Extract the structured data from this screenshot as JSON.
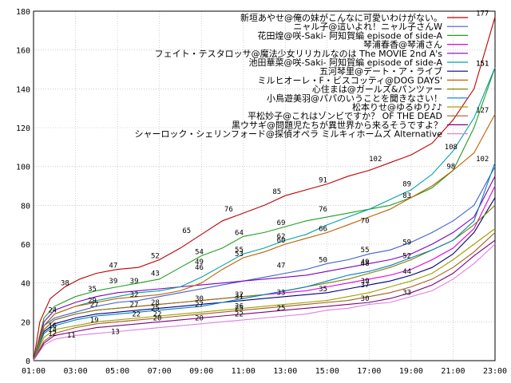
{
  "chart_data": {
    "type": "line",
    "title": "",
    "xlabel": "",
    "ylabel": "",
    "x_ticks": [
      "01:00",
      "03:00",
      "05:00",
      "07:00",
      "09:00",
      "11:00",
      "13:00",
      "15:00",
      "17:00",
      "19:00",
      "21:00",
      "23:00"
    ],
    "y_ticks": [
      0,
      20,
      40,
      60,
      80,
      100,
      120,
      140,
      160,
      180
    ],
    "xlim": [
      0,
      22
    ],
    "ylim": [
      0,
      180
    ],
    "grid": true,
    "legend_position": "top-right",
    "series": [
      {
        "name": "新垣あやせ@俺の妹がこんなに可愛いわけがない。",
        "color": "#c00000",
        "x": [
          0,
          0.3,
          0.8,
          1.5,
          2.2,
          3,
          4,
          5,
          6,
          7,
          8,
          9,
          10,
          11,
          12,
          13,
          14,
          15,
          16,
          17,
          18,
          19,
          20,
          21,
          22
        ],
        "y": [
          0,
          20,
          32,
          38,
          42,
          45,
          47,
          48,
          52,
          58,
          65,
          72,
          76,
          80,
          85,
          88,
          91,
          95,
          98,
          102,
          106,
          112,
          124,
          140,
          177
        ],
        "labels": [
          {
            "x": 1.5,
            "y": 38,
            "t": "38"
          },
          {
            "x": 3.8,
            "y": 47,
            "t": "47"
          },
          {
            "x": 5.8,
            "y": 52,
            "t": "52"
          },
          {
            "x": 7.3,
            "y": 65,
            "t": "65"
          },
          {
            "x": 9.3,
            "y": 76,
            "t": "76"
          },
          {
            "x": 11.6,
            "y": 85,
            "t": "85"
          },
          {
            "x": 13.8,
            "y": 91,
            "t": "91"
          },
          {
            "x": 16.3,
            "y": 102,
            "t": "102"
          },
          {
            "x": 21.4,
            "y": 177,
            "t": "177"
          }
        ]
      },
      {
        "name": "ニャル子@這いよれ！ニャル子さんW",
        "color": "#4060d0",
        "x": [
          0,
          0.5,
          1,
          2,
          3,
          4,
          5,
          6,
          7,
          8,
          9,
          10,
          11,
          12,
          13,
          14,
          15,
          16,
          17,
          18,
          19,
          20,
          21,
          22
        ],
        "y": [
          0,
          18,
          22,
          25,
          28,
          30,
          31,
          33,
          35,
          37,
          39,
          41,
          43,
          45,
          47,
          50,
          52,
          55,
          57,
          61,
          66,
          72,
          80,
          100
        ],
        "labels": []
      },
      {
        "name": "花田煌@咲-Saki- 阿知賀編 episode of side-A",
        "color": "#20a020",
        "x": [
          0,
          0.5,
          1,
          2,
          3,
          4,
          5,
          6,
          7,
          8,
          9,
          10,
          11,
          12,
          13,
          14,
          15,
          16,
          17,
          18,
          19,
          20,
          21,
          22
        ],
        "y": [
          0,
          22,
          28,
          33,
          36,
          38,
          40,
          42,
          48,
          54,
          58,
          64,
          66,
          69,
          72,
          74,
          76,
          78,
          80,
          84,
          89,
          98,
          120,
          151
        ],
        "labels": [
          {
            "x": 3.8,
            "y": 39,
            "t": "39"
          },
          {
            "x": 5.8,
            "y": 43,
            "t": "43"
          },
          {
            "x": 7.9,
            "y": 54,
            "t": "54"
          },
          {
            "x": 9.8,
            "y": 64,
            "t": "64"
          },
          {
            "x": 11.8,
            "y": 69,
            "t": "69"
          },
          {
            "x": 13.8,
            "y": 76,
            "t": "76"
          },
          {
            "x": 17.8,
            "y": 89,
            "t": "89"
          },
          {
            "x": 21.4,
            "y": 151,
            "t": "151"
          }
        ]
      },
      {
        "name": "琴浦春香@琴浦さん",
        "color": "#e000e0",
        "x": [
          0,
          0.5,
          1,
          2,
          3,
          4,
          5,
          6,
          7,
          8,
          9,
          10,
          11,
          12,
          13,
          14,
          15,
          16,
          17,
          18,
          19,
          20,
          21,
          22
        ],
        "y": [
          0,
          16,
          21,
          24,
          26,
          27,
          28,
          29,
          30,
          31,
          32,
          33,
          34,
          35,
          36,
          38,
          40,
          42,
          44,
          47,
          52,
          58,
          68,
          90
        ],
        "labels": []
      },
      {
        "name": "フェイト・テスタロッサ@魔法少女リリカルなのは The MOVIE 2nd A's",
        "color": "#8000c0",
        "x": [
          0,
          0.5,
          1,
          2,
          3,
          4,
          5,
          6,
          7,
          8,
          9,
          10,
          11,
          12,
          13,
          14,
          15,
          16,
          17,
          18,
          19,
          20,
          21,
          22
        ],
        "y": [
          0,
          20,
          26,
          30,
          33,
          35,
          36,
          37,
          38,
          39,
          40,
          41,
          42,
          43,
          44,
          46,
          48,
          50,
          52,
          55,
          60,
          66,
          74,
          95
        ],
        "labels": [
          {
            "x": 11.8,
            "y": 47,
            "t": "47"
          },
          {
            "x": 13.8,
            "y": 50,
            "t": "50"
          },
          {
            "x": 15.8,
            "y": 55,
            "t": "55"
          },
          {
            "x": 17.8,
            "y": 59,
            "t": "59"
          }
        ]
      },
      {
        "name": "池田華菜@咲-Saki- 阿知賀編 episode of side-A",
        "color": "#00a0a0",
        "x": [
          0,
          0.5,
          1,
          2,
          3,
          4,
          5,
          6,
          7,
          8,
          9,
          10,
          11,
          12,
          13,
          14,
          15,
          16,
          17,
          18,
          19,
          20,
          21,
          22
        ],
        "y": [
          0,
          18,
          24,
          28,
          31,
          33,
          35,
          36,
          38,
          43,
          49,
          55,
          58,
          62,
          65,
          70,
          74,
          78,
          83,
          88,
          96,
          108,
          125,
          151
        ],
        "labels": [
          {
            "x": 2.8,
            "y": 35,
            "t": "35"
          },
          {
            "x": 4.8,
            "y": 39,
            "t": "39"
          },
          {
            "x": 7.9,
            "y": 49,
            "t": "49"
          },
          {
            "x": 9.8,
            "y": 55,
            "t": "55"
          },
          {
            "x": 11.8,
            "y": 62,
            "t": "62"
          },
          {
            "x": 17.8,
            "y": 83,
            "t": "83"
          },
          {
            "x": 19.9,
            "y": 108,
            "t": "108"
          },
          {
            "x": 21.4,
            "y": 151,
            "t": "151"
          }
        ]
      },
      {
        "name": "五河琴里@デート・ア・ライブ",
        "color": "#000080",
        "x": [
          0,
          0.5,
          1,
          2,
          3,
          4,
          5,
          6,
          7,
          8,
          9,
          10,
          11,
          12,
          13,
          14,
          15,
          16,
          17,
          18,
          19,
          20,
          21,
          22
        ],
        "y": [
          0,
          15,
          19,
          22,
          24,
          25,
          26,
          27,
          28,
          29,
          30,
          31,
          32,
          33,
          34,
          35,
          37,
          39,
          41,
          44,
          48,
          55,
          66,
          84
        ],
        "labels": [
          {
            "x": 5.8,
            "y": 28,
            "t": "28"
          },
          {
            "x": 7.9,
            "y": 30,
            "t": "30"
          },
          {
            "x": 9.8,
            "y": 31,
            "t": "31"
          },
          {
            "x": 11.8,
            "y": 33,
            "t": "33"
          },
          {
            "x": 13.8,
            "y": 35,
            "t": "35"
          },
          {
            "x": 15.8,
            "y": 37,
            "t": "37"
          }
        ]
      },
      {
        "name": "ミルヒオーレ・F・ビスコッティ@DOG DAYS'",
        "color": "#c06000",
        "x": [
          0,
          0.5,
          1,
          2,
          3,
          4,
          5,
          6,
          7,
          8,
          9,
          10,
          11,
          12,
          13,
          14,
          15,
          16,
          17,
          18,
          19,
          20,
          21,
          22
        ],
        "y": [
          0,
          18,
          24,
          28,
          30,
          32,
          33,
          34,
          36,
          40,
          47,
          53,
          56,
          60,
          63,
          66,
          70,
          74,
          78,
          84,
          90,
          98,
          107,
          127
        ],
        "labels": [
          {
            "x": 2.8,
            "y": 29,
            "t": "29"
          },
          {
            "x": 4.8,
            "y": 32,
            "t": "32"
          },
          {
            "x": 7.9,
            "y": 46,
            "t": "46"
          },
          {
            "x": 9.8,
            "y": 53,
            "t": "53"
          },
          {
            "x": 11.8,
            "y": 60,
            "t": "60"
          },
          {
            "x": 13.8,
            "y": 66,
            "t": "66"
          },
          {
            "x": 15.8,
            "y": 70,
            "t": "70"
          },
          {
            "x": 19.9,
            "y": 98,
            "t": "98"
          },
          {
            "x": 21.4,
            "y": 127,
            "t": "127"
          }
        ]
      },
      {
        "name": "心住まは@ガールズ&パンツァー",
        "color": "#808000",
        "x": [
          0,
          0.5,
          1,
          2,
          3,
          4,
          5,
          6,
          7,
          8,
          9,
          10,
          11,
          12,
          13,
          14,
          15,
          16,
          17,
          18,
          19,
          20,
          21,
          22
        ],
        "y": [
          0,
          16,
          21,
          24,
          26,
          27,
          28,
          29,
          30,
          31,
          32,
          33,
          34,
          36,
          38,
          40,
          42,
          45,
          48,
          52,
          57,
          62,
          70,
          80
        ],
        "labels": [
          {
            "x": 0.9,
            "y": 24,
            "t": "24"
          },
          {
            "x": 2.9,
            "y": 27,
            "t": "27"
          },
          {
            "x": 4.8,
            "y": 27,
            "t": "27"
          },
          {
            "x": 15.8,
            "y": 48,
            "t": "48"
          },
          {
            "x": 17.8,
            "y": 52,
            "t": "52"
          }
        ]
      },
      {
        "name": "小鳥遊美羽@パパのいうことを聞きなさい！",
        "color": "#0080c0",
        "x": [
          0,
          0.5,
          1,
          2,
          3,
          4,
          5,
          6,
          7,
          8,
          9,
          10,
          11,
          12,
          13,
          14,
          15,
          16,
          17,
          18,
          19,
          20,
          21,
          22
        ],
        "y": [
          0,
          14,
          18,
          21,
          23,
          24,
          25,
          26,
          27,
          28,
          30,
          32,
          34,
          36,
          38,
          41,
          44,
          46,
          49,
          53,
          57,
          62,
          72,
          102
        ],
        "labels": [
          {
            "x": 5.8,
            "y": 25,
            "t": "25"
          },
          {
            "x": 7.9,
            "y": 27,
            "t": "27"
          },
          {
            "x": 9.8,
            "y": 32,
            "t": "32"
          },
          {
            "x": 15.8,
            "y": 49,
            "t": "49"
          },
          {
            "x": 21.4,
            "y": 102,
            "t": "102"
          }
        ]
      },
      {
        "name": "松本りせ@ゆるゆり♪♪",
        "color": "#a0a000",
        "x": [
          0,
          0.5,
          1,
          2,
          3,
          4,
          5,
          6,
          7,
          8,
          9,
          10,
          11,
          12,
          13,
          14,
          15,
          16,
          17,
          18,
          19,
          20,
          21,
          22
        ],
        "y": [
          0,
          12,
          16,
          18,
          20,
          21,
          22,
          23,
          24,
          25,
          26,
          27,
          28,
          29,
          30,
          31,
          33,
          35,
          38,
          41,
          45,
          52,
          60,
          68
        ],
        "labels": [
          {
            "x": 0.9,
            "y": 16,
            "t": "16"
          },
          {
            "x": 2.9,
            "y": 19,
            "t": "19"
          },
          {
            "x": 4.9,
            "y": 22,
            "t": "22"
          },
          {
            "x": 15.8,
            "y": 39,
            "t": "39"
          },
          {
            "x": 17.8,
            "y": 44,
            "t": "44"
          }
        ]
      },
      {
        "name": "平松妙子@これはゾンビですか？ OF THE DEAD",
        "color": "#a06020",
        "x": [
          0,
          0.5,
          1,
          2,
          3,
          4,
          5,
          6,
          7,
          8,
          9,
          10,
          11,
          12,
          13,
          14,
          15,
          16,
          17,
          18,
          19,
          20,
          21,
          22
        ],
        "y": [
          0,
          10,
          14,
          17,
          19,
          20,
          21,
          22,
          23,
          24,
          25,
          26,
          27,
          28,
          29,
          30,
          31,
          33,
          35,
          38,
          42,
          48,
          56,
          66
        ],
        "labels": [
          {
            "x": 0.9,
            "y": 14,
            "t": "14"
          },
          {
            "x": 5.9,
            "y": 22,
            "t": "22"
          },
          {
            "x": 9.8,
            "y": 26,
            "t": "26"
          }
        ]
      },
      {
        "name": "黒ウサギ@問題児たちが異世界から来るそうですよ？",
        "color": "#800080",
        "x": [
          0,
          0.5,
          1,
          2,
          3,
          4,
          5,
          6,
          7,
          8,
          9,
          10,
          11,
          12,
          13,
          14,
          15,
          16,
          17,
          18,
          19,
          20,
          21,
          22
        ],
        "y": [
          0,
          9,
          13,
          15,
          17,
          18,
          19,
          20,
          21,
          22,
          23,
          24,
          25,
          26,
          27,
          28,
          29,
          30,
          32,
          35,
          39,
          45,
          54,
          62
        ],
        "labels": [
          {
            "x": 0.9,
            "y": 12,
            "t": "12"
          },
          {
            "x": 5.9,
            "y": 20,
            "t": "20"
          },
          {
            "x": 9.8,
            "y": 25,
            "t": "25"
          },
          {
            "x": 11.8,
            "y": 25,
            "t": "25"
          }
        ]
      },
      {
        "name": "シャーロック・シェリンフォード@探偵オペラ ミルキィホームズ Alternative",
        "color": "#e080e0",
        "x": [
          0,
          0.5,
          1,
          2,
          3,
          4,
          5,
          6,
          7,
          8,
          9,
          10,
          11,
          12,
          13,
          14,
          15,
          16,
          17,
          18,
          19,
          20,
          21,
          22
        ],
        "y": [
          0,
          8,
          11,
          13,
          14,
          15,
          16,
          17,
          18,
          19,
          20,
          21,
          22,
          23,
          24,
          26,
          27,
          29,
          30,
          33,
          36,
          42,
          50,
          60
        ],
        "labels": [
          {
            "x": 1.8,
            "y": 11,
            "t": "11"
          },
          {
            "x": 3.9,
            "y": 13,
            "t": "13"
          },
          {
            "x": 7.9,
            "y": 20,
            "t": "20"
          },
          {
            "x": 9.8,
            "y": 22,
            "t": "22"
          },
          {
            "x": 15.8,
            "y": 30,
            "t": "30"
          },
          {
            "x": 17.8,
            "y": 33,
            "t": "33"
          }
        ]
      }
    ]
  }
}
